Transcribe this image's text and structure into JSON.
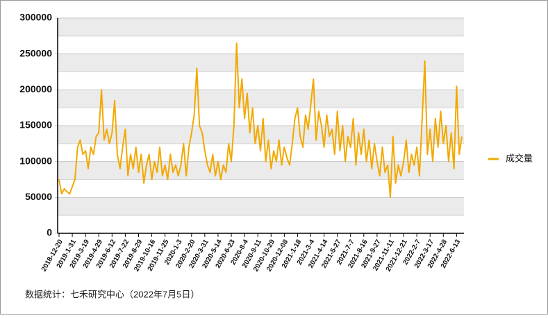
{
  "chart_data": {
    "type": "line",
    "categories": [
      "2018-12-20",
      null,
      null,
      null,
      null,
      "2019-1-31",
      null,
      null,
      null,
      null,
      "2019-3-19",
      null,
      null,
      null,
      null,
      "2019-4-29",
      null,
      null,
      null,
      null,
      "2019-6-12",
      null,
      null,
      null,
      null,
      "2019-7-22",
      null,
      null,
      null,
      null,
      "2019-8-29",
      null,
      null,
      null,
      null,
      "2019-10-16",
      null,
      null,
      null,
      null,
      "2019-11-25",
      null,
      null,
      null,
      null,
      "2020-1-3",
      null,
      null,
      null,
      null,
      "2020-2-20",
      null,
      null,
      null,
      null,
      "2020-3-31",
      null,
      null,
      null,
      null,
      "2020-5-14",
      null,
      null,
      null,
      null,
      "2020-6-23",
      null,
      null,
      null,
      null,
      "2020-8-4",
      null,
      null,
      null,
      null,
      "2020-9-11",
      null,
      null,
      null,
      null,
      "2020-10-29",
      null,
      null,
      null,
      null,
      "2020-12-08",
      null,
      null,
      null,
      null,
      "2021-1-18",
      null,
      null,
      null,
      null,
      "2021-3-4",
      null,
      null,
      null,
      null,
      "2021-4-14",
      null,
      null,
      null,
      null,
      "2021-5-27",
      null,
      null,
      null,
      null,
      "2021-7-7",
      null,
      null,
      null,
      null,
      "2021-8-16",
      null,
      null,
      null,
      null,
      "2021-9-27",
      null,
      null,
      null,
      null,
      "2021-11-11",
      null,
      null,
      null,
      null,
      "2021-12-21",
      null,
      null,
      null,
      null,
      "2022-2-7",
      null,
      null,
      null,
      null,
      "2022-3-17",
      null,
      null,
      null,
      null,
      "2022-4-28",
      null,
      null,
      null,
      null,
      "2022-6-13",
      null,
      null
    ],
    "series": [
      {
        "name": "成交量",
        "color": "#f2a900",
        "values": [
          75000,
          55000,
          62000,
          58000,
          55000,
          65000,
          75000,
          120000,
          130000,
          110000,
          115000,
          90000,
          120000,
          110000,
          135000,
          140000,
          200000,
          130000,
          145000,
          125000,
          140000,
          185000,
          110000,
          90000,
          120000,
          145000,
          80000,
          110000,
          90000,
          120000,
          85000,
          110000,
          70000,
          95000,
          110000,
          75000,
          100000,
          85000,
          120000,
          80000,
          95000,
          75000,
          110000,
          85000,
          95000,
          80000,
          95000,
          125000,
          80000,
          120000,
          140000,
          165000,
          230000,
          150000,
          140000,
          115000,
          95000,
          85000,
          110000,
          80000,
          100000,
          75000,
          95000,
          85000,
          125000,
          100000,
          150000,
          265000,
          175000,
          215000,
          160000,
          195000,
          140000,
          175000,
          125000,
          150000,
          115000,
          160000,
          100000,
          130000,
          90000,
          115000,
          100000,
          130000,
          95000,
          120000,
          105000,
          95000,
          125000,
          160000,
          175000,
          135000,
          120000,
          165000,
          145000,
          180000,
          215000,
          130000,
          170000,
          150000,
          120000,
          165000,
          135000,
          145000,
          110000,
          170000,
          115000,
          150000,
          100000,
          135000,
          120000,
          160000,
          95000,
          140000,
          110000,
          145000,
          100000,
          130000,
          90000,
          125000,
          100000,
          80000,
          120000,
          85000,
          95000,
          50000,
          135000,
          70000,
          95000,
          80000,
          100000,
          130000,
          85000,
          110000,
          95000,
          120000,
          80000,
          160000,
          240000,
          110000,
          145000,
          100000,
          160000,
          120000,
          170000,
          125000,
          150000,
          100000,
          140000,
          90000,
          205000,
          110000,
          135000
        ]
      }
    ],
    "ylim": [
      0,
      300000
    ],
    "yticks": [
      0,
      50000,
      100000,
      150000,
      200000,
      250000,
      300000
    ],
    "grid": true,
    "legend": "right",
    "source": "数据统计：七禾研究中心（2022年7月5日）"
  }
}
